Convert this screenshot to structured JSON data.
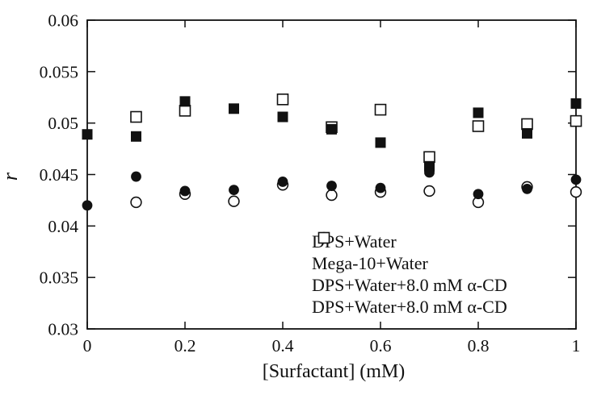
{
  "figure": {
    "background": "#ffffff",
    "ink_color": "#111111"
  },
  "chart_data": {
    "type": "scatter",
    "title": "",
    "xlabel": "[Surfactant] (mM)",
    "ylabel": "r",
    "xlim": [
      0,
      1
    ],
    "ylim": [
      0.03,
      0.06
    ],
    "xticks": [
      0,
      0.2,
      0.4,
      0.6,
      0.8,
      1
    ],
    "xtick_labels": [
      "0",
      "0.2",
      "0.4",
      "0.6",
      "0.8",
      "1"
    ],
    "yticks": [
      0.03,
      0.035,
      0.04,
      0.045,
      0.05,
      0.055,
      0.06
    ],
    "ytick_labels": [
      "0.03",
      "0.035",
      "0.04",
      "0.045",
      "0.05",
      "0.055",
      "0.06"
    ],
    "grid": false,
    "legend_position": "inside-bottom-right",
    "series": [
      {
        "name": "DPS+Water",
        "marker": "filled-circle",
        "points": [
          [
            0,
            0.042
          ],
          [
            0.1,
            0.0448
          ],
          [
            0.2,
            0.0434
          ],
          [
            0.3,
            0.0435
          ],
          [
            0.4,
            0.0443
          ],
          [
            0.5,
            0.0439
          ],
          [
            0.6,
            0.0437
          ],
          [
            0.7,
            0.0452
          ],
          [
            0.8,
            0.0431
          ],
          [
            0.9,
            0.0436
          ],
          [
            1,
            0.0445
          ]
        ]
      },
      {
        "name": "Mega-10+Water",
        "marker": "open-circle",
        "points": [
          [
            0.1,
            0.0423
          ],
          [
            0.2,
            0.0431
          ],
          [
            0.3,
            0.0424
          ],
          [
            0.4,
            0.044
          ],
          [
            0.5,
            0.043
          ],
          [
            0.6,
            0.0433
          ],
          [
            0.7,
            0.0434
          ],
          [
            0.8,
            0.0423
          ],
          [
            0.9,
            0.0438
          ],
          [
            1,
            0.0433
          ]
        ]
      },
      {
        "name": "DPS+Water+8.0 mM α-CD",
        "marker": "filled-square",
        "points": [
          [
            0,
            0.0489
          ],
          [
            0.1,
            0.0487
          ],
          [
            0.2,
            0.0521
          ],
          [
            0.3,
            0.0514
          ],
          [
            0.4,
            0.0506
          ],
          [
            0.5,
            0.0494
          ],
          [
            0.6,
            0.0481
          ],
          [
            0.7,
            0.0458
          ],
          [
            0.8,
            0.051
          ],
          [
            0.9,
            0.049
          ],
          [
            1,
            0.0519
          ]
        ]
      },
      {
        "name": "DPS+Water+8.0 mM α-CD",
        "marker": "open-square",
        "points": [
          [
            0.1,
            0.0506
          ],
          [
            0.2,
            0.0512
          ],
          [
            0.4,
            0.0523
          ],
          [
            0.5,
            0.0496
          ],
          [
            0.6,
            0.0513
          ],
          [
            0.7,
            0.0467
          ],
          [
            0.8,
            0.0497
          ],
          [
            0.9,
            0.0499
          ],
          [
            1,
            0.0502
          ]
        ]
      }
    ]
  }
}
